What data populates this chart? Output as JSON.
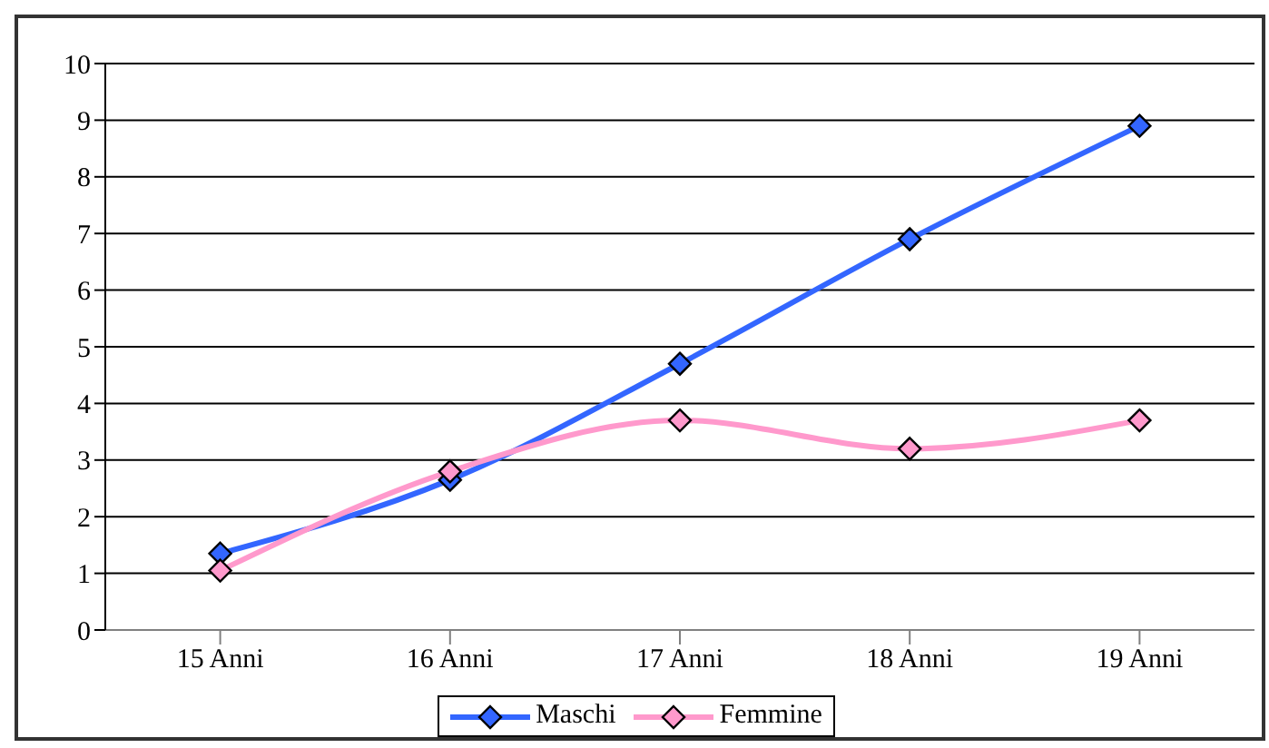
{
  "chart_data": {
    "type": "line",
    "categories": [
      "15 Anni",
      "16 Anni",
      "17 Anni",
      "18 Anni",
      "19 Anni"
    ],
    "series": [
      {
        "name": "Maschi",
        "color": "#3366ff",
        "values": [
          1.35,
          2.65,
          4.7,
          6.9,
          8.9
        ]
      },
      {
        "name": "Femmine",
        "color": "#ff99cc",
        "values": [
          1.05,
          2.8,
          3.7,
          3.2,
          3.7
        ]
      }
    ],
    "ylim": [
      0,
      10
    ],
    "yticks": [
      0,
      1,
      2,
      3,
      4,
      5,
      6,
      7,
      8,
      9,
      10
    ],
    "grid": "y",
    "legend": "bottom",
    "marker": "diamond",
    "line_style": "solid"
  }
}
